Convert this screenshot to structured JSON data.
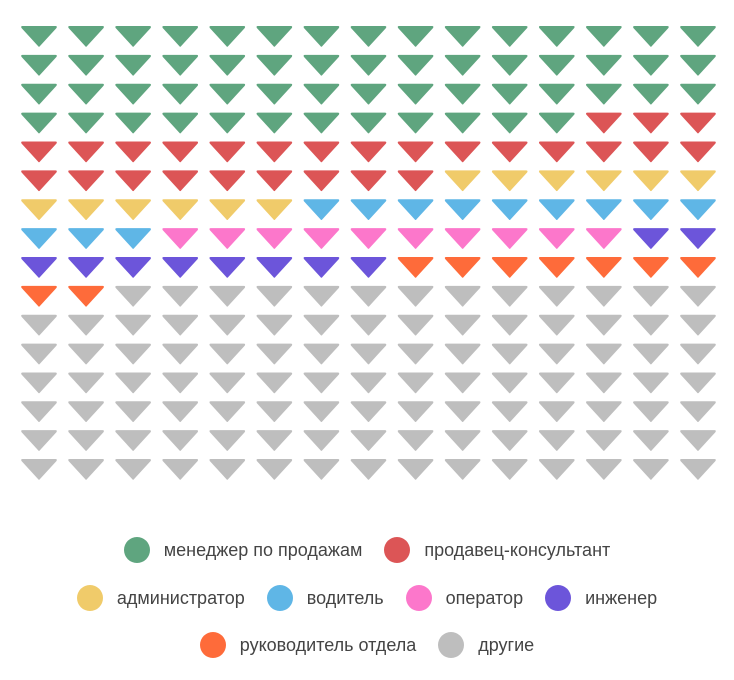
{
  "chart_data": {
    "type": "waffle",
    "shape": "triangle-down",
    "columns": 15,
    "rows": 16,
    "fill_order": "row-major, left-to-right, top-to-bottom",
    "legend_position": "bottom",
    "series": [
      {
        "name": "менеджер по продажам",
        "value": 57,
        "color": "#5fa57f"
      },
      {
        "name": "продавец-консультант",
        "value": 27,
        "color": "#dc5556"
      },
      {
        "name": "администратор",
        "value": 12,
        "color": "#f0cb6a"
      },
      {
        "name": "водитель",
        "value": 12,
        "color": "#5fb6e6"
      },
      {
        "name": "оператор",
        "value": 10,
        "color": "#fc77cb"
      },
      {
        "name": "инженер",
        "value": 10,
        "color": "#6c55da"
      },
      {
        "name": "руководитель отдела",
        "value": 9,
        "color": "#fe6b3a"
      },
      {
        "name": "другие",
        "value": 103,
        "color": "#bebebe"
      }
    ]
  }
}
